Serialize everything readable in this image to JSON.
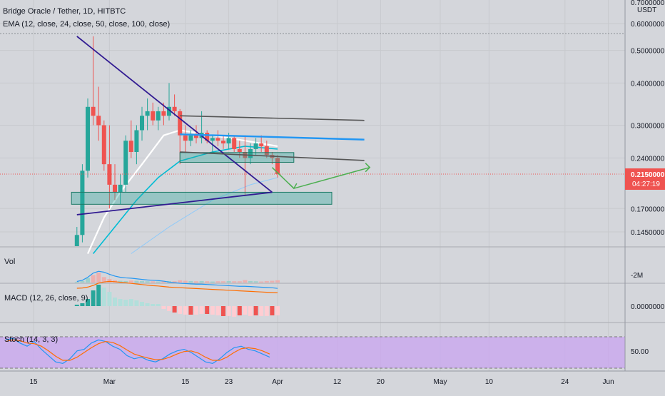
{
  "header": {
    "symbol_title": "Bridge Oracle / Tether, 1D, HITBTC",
    "indicator": "EMA (12, close, 24, close, 50, close, 100, close)"
  },
  "axis": {
    "currency": "USDT",
    "top_value": "0.7000000",
    "price_ticks": [
      "0.6000000",
      "0.5000000",
      "0.4000000",
      "0.3000000",
      "0.2400000",
      "0.1700000",
      "0.1450000"
    ],
    "last_price": "0.2150000",
    "countdown": "04:27:19",
    "x_ticks": [
      "15",
      "Mar",
      "15",
      "23",
      "Apr",
      "12",
      "20",
      "May",
      "10",
      "24",
      "Jun"
    ]
  },
  "panes": {
    "vol": {
      "label": "Vol",
      "tick": "-2M"
    },
    "macd": {
      "label": "MACD (12, 26, close, 9)",
      "tick": "0.0000000"
    },
    "stoch": {
      "label": "Stoch (14, 3, 3)",
      "tick": "50.00"
    }
  },
  "colors": {
    "up": "#26a69a",
    "down": "#ef5350",
    "ema12": "#ffffff",
    "ema24": "#00bcd4",
    "ema50": "#90caf9",
    "blue_line": "#2196f3",
    "trend_line": "#311b92",
    "gray_line": "#555555",
    "green_arrow": "#4caf50",
    "box_fill": "#26a69a",
    "last_price_tag": "#ef5350",
    "stoch_band": "#c9a4f0",
    "macd_line": "#2196f3",
    "signal_line": "#ff6d00"
  },
  "chart_data": {
    "type": "candlestick",
    "title": "Bridge Oracle / Tether, 1D, HITBTC",
    "y_scale": "log",
    "ylim": [
      0.125,
      0.72
    ],
    "x_range": [
      "2021-02-08",
      "2021-06-03"
    ],
    "candles": [
      {
        "date": "2021-02-23",
        "o": 0.125,
        "h": 0.15,
        "l": 0.115,
        "c": 0.142
      },
      {
        "date": "2021-02-24",
        "o": 0.142,
        "h": 0.23,
        "l": 0.135,
        "c": 0.22
      },
      {
        "date": "2021-02-25",
        "o": 0.22,
        "h": 0.36,
        "l": 0.21,
        "c": 0.34
      },
      {
        "date": "2021-02-26",
        "o": 0.34,
        "h": 0.55,
        "l": 0.3,
        "c": 0.32
      },
      {
        "date": "2021-02-27",
        "o": 0.32,
        "h": 0.39,
        "l": 0.27,
        "c": 0.3
      },
      {
        "date": "2021-02-28",
        "o": 0.3,
        "h": 0.31,
        "l": 0.22,
        "c": 0.23
      },
      {
        "date": "2021-03-01",
        "o": 0.23,
        "h": 0.3,
        "l": 0.17,
        "c": 0.2
      },
      {
        "date": "2021-03-02",
        "o": 0.2,
        "h": 0.23,
        "l": 0.18,
        "c": 0.19
      },
      {
        "date": "2021-03-03",
        "o": 0.19,
        "h": 0.215,
        "l": 0.175,
        "c": 0.2
      },
      {
        "date": "2021-03-04",
        "o": 0.2,
        "h": 0.28,
        "l": 0.19,
        "c": 0.27
      },
      {
        "date": "2021-03-05",
        "o": 0.27,
        "h": 0.31,
        "l": 0.24,
        "c": 0.25
      },
      {
        "date": "2021-03-06",
        "o": 0.25,
        "h": 0.3,
        "l": 0.23,
        "c": 0.29
      },
      {
        "date": "2021-03-07",
        "o": 0.29,
        "h": 0.34,
        "l": 0.27,
        "c": 0.32
      },
      {
        "date": "2021-03-08",
        "o": 0.32,
        "h": 0.36,
        "l": 0.29,
        "c": 0.33
      },
      {
        "date": "2021-03-09",
        "o": 0.33,
        "h": 0.35,
        "l": 0.3,
        "c": 0.31
      },
      {
        "date": "2021-03-10",
        "o": 0.31,
        "h": 0.34,
        "l": 0.29,
        "c": 0.33
      },
      {
        "date": "2021-03-11",
        "o": 0.33,
        "h": 0.35,
        "l": 0.3,
        "c": 0.32
      },
      {
        "date": "2021-03-12",
        "o": 0.32,
        "h": 0.4,
        "l": 0.31,
        "c": 0.34
      },
      {
        "date": "2021-03-13",
        "o": 0.34,
        "h": 0.37,
        "l": 0.32,
        "c": 0.33
      },
      {
        "date": "2021-03-14",
        "o": 0.33,
        "h": 0.335,
        "l": 0.23,
        "c": 0.28
      },
      {
        "date": "2021-03-15",
        "o": 0.28,
        "h": 0.3,
        "l": 0.25,
        "c": 0.27
      },
      {
        "date": "2021-03-16",
        "o": 0.27,
        "h": 0.29,
        "l": 0.26,
        "c": 0.28
      },
      {
        "date": "2021-03-17",
        "o": 0.28,
        "h": 0.3,
        "l": 0.265,
        "c": 0.275
      },
      {
        "date": "2021-03-18",
        "o": 0.275,
        "h": 0.33,
        "l": 0.265,
        "c": 0.285
      },
      {
        "date": "2021-03-19",
        "o": 0.285,
        "h": 0.29,
        "l": 0.265,
        "c": 0.27
      },
      {
        "date": "2021-03-20",
        "o": 0.27,
        "h": 0.28,
        "l": 0.25,
        "c": 0.275
      },
      {
        "date": "2021-03-21",
        "o": 0.275,
        "h": 0.29,
        "l": 0.26,
        "c": 0.27
      },
      {
        "date": "2021-03-22",
        "o": 0.27,
        "h": 0.28,
        "l": 0.255,
        "c": 0.265
      },
      {
        "date": "2021-03-23",
        "o": 0.265,
        "h": 0.285,
        "l": 0.255,
        "c": 0.275
      },
      {
        "date": "2021-03-24",
        "o": 0.275,
        "h": 0.28,
        "l": 0.25,
        "c": 0.255
      },
      {
        "date": "2021-03-25",
        "o": 0.255,
        "h": 0.27,
        "l": 0.24,
        "c": 0.25
      },
      {
        "date": "2021-03-26",
        "o": 0.25,
        "h": 0.28,
        "l": 0.185,
        "c": 0.24
      },
      {
        "date": "2021-03-27",
        "o": 0.24,
        "h": 0.265,
        "l": 0.23,
        "c": 0.255
      },
      {
        "date": "2021-03-28",
        "o": 0.255,
        "h": 0.275,
        "l": 0.245,
        "c": 0.265
      },
      {
        "date": "2021-03-29",
        "o": 0.265,
        "h": 0.28,
        "l": 0.25,
        "c": 0.26
      },
      {
        "date": "2021-03-30",
        "o": 0.26,
        "h": 0.27,
        "l": 0.24,
        "c": 0.245
      },
      {
        "date": "2021-03-31",
        "o": 0.245,
        "h": 0.25,
        "l": 0.23,
        "c": 0.24
      },
      {
        "date": "2021-04-01",
        "o": 0.24,
        "h": 0.245,
        "l": 0.21,
        "c": 0.215
      }
    ],
    "stoch_levels": [
      80,
      20
    ]
  }
}
